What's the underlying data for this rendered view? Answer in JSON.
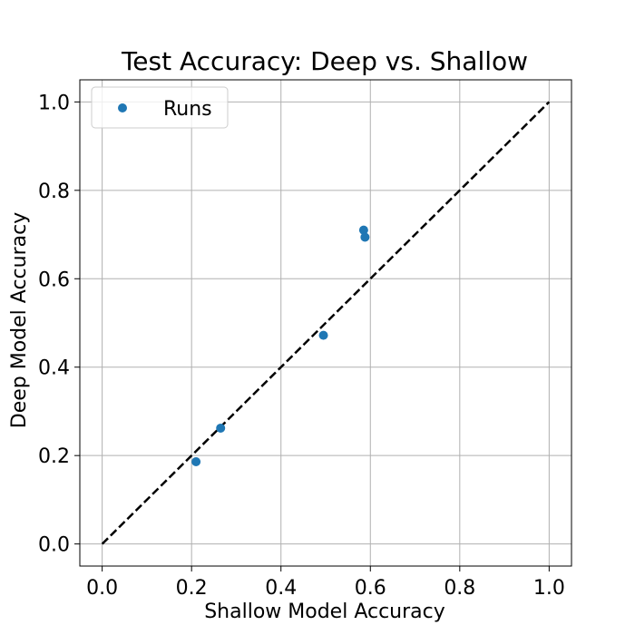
{
  "chart_data": {
    "type": "scatter",
    "title": "Test Accuracy: Deep vs. Shallow",
    "xlabel": "Shallow Model Accuracy",
    "ylabel": "Deep Model Accuracy",
    "xlim": [
      -0.05,
      1.05
    ],
    "ylim": [
      -0.05,
      1.05
    ],
    "xticks": [
      "0.0",
      "0.2",
      "0.4",
      "0.6",
      "0.8",
      "1.0"
    ],
    "yticks": [
      "0.0",
      "0.2",
      "0.4",
      "0.6",
      "0.8",
      "1.0"
    ],
    "grid": true,
    "legend": {
      "placement": "top-left",
      "entries": [
        "Runs"
      ]
    },
    "series": [
      {
        "name": "Runs",
        "color": "#1f77b4",
        "points": [
          {
            "x": 0.21,
            "y": 0.186
          },
          {
            "x": 0.265,
            "y": 0.262
          },
          {
            "x": 0.495,
            "y": 0.472
          },
          {
            "x": 0.585,
            "y": 0.71
          },
          {
            "x": 0.588,
            "y": 0.694
          }
        ]
      }
    ],
    "reference_line": {
      "style": "dashed",
      "color": "#000000",
      "from": [
        0,
        0
      ],
      "to": [
        1,
        1
      ]
    }
  }
}
